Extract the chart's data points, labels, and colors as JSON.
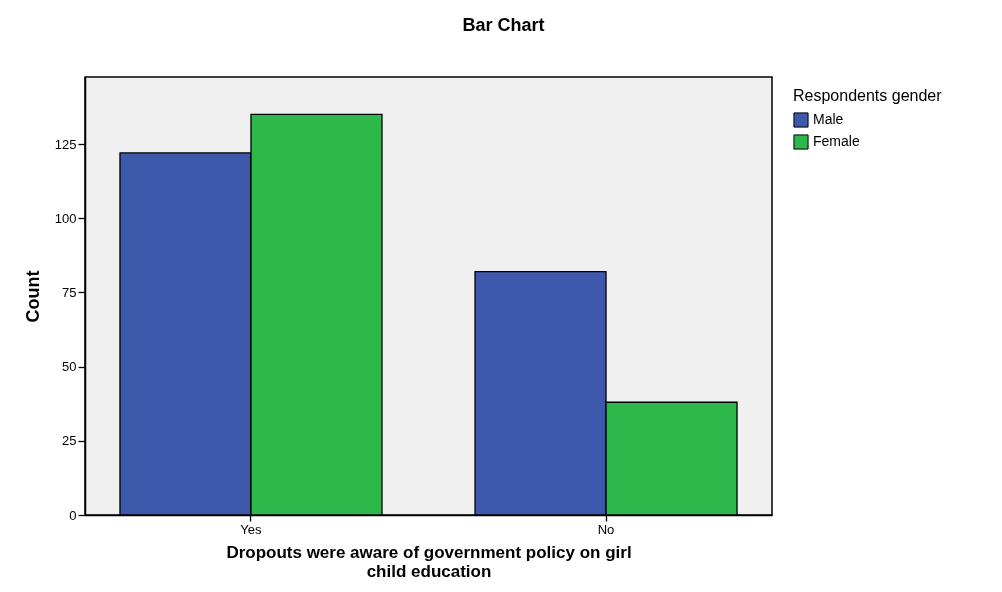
{
  "chart_data": {
    "type": "bar",
    "title": "Bar Chart",
    "xlabel": "Dropouts were aware of government policy on girl child education",
    "ylabel": "Count",
    "legend_title": "Respondents gender",
    "categories": [
      "Yes",
      "No"
    ],
    "series": [
      {
        "name": "Male",
        "color": "#3e58ac",
        "values": [
          122,
          82
        ]
      },
      {
        "name": "Female",
        "color": "#2fb84a",
        "values": [
          135,
          38
        ]
      }
    ],
    "ylim": [
      0,
      147.6
    ],
    "yticks": [
      0,
      25,
      50,
      75,
      100,
      125
    ],
    "grid": false,
    "legend": "top right"
  }
}
